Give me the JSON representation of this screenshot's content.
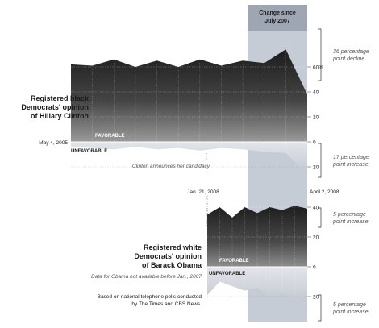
{
  "chart_data": [
    {
      "type": "area",
      "name": "clinton",
      "title": [
        "Registered black",
        "Democrats' opinion",
        "of Hillary Clinton"
      ],
      "x_start": "May 4, 2005",
      "x_end": "April 2, 2008",
      "ylim": [
        -30,
        80
      ],
      "ticks": [
        "60%",
        "40",
        "20",
        "0",
        "20"
      ],
      "tick_values": [
        60,
        40,
        20,
        0,
        -20
      ],
      "series": [
        {
          "name": "FAVORABLE",
          "values": [
            62,
            61,
            66,
            60,
            65,
            60,
            66,
            61,
            65,
            63,
            74,
            38
          ]
        },
        {
          "name": "UNFAVORABLE",
          "values": [
            -4,
            -5,
            -6,
            -4,
            -6,
            -5,
            -7,
            -5,
            -6,
            -8,
            -9,
            -26
          ]
        }
      ],
      "annotation": "Clinton announces her candidacy",
      "changes": [
        {
          "lines": [
            "36 percentage",
            "point decline"
          ]
        },
        {
          "lines": [
            "17 percentage",
            "point increase"
          ]
        }
      ]
    },
    {
      "type": "area",
      "name": "obama",
      "title": [
        "Registered white",
        "Democrats' opinion",
        "of Barack Obama"
      ],
      "x_start": "Jan. 21, 2008",
      "ylim": [
        -30,
        80
      ],
      "ticks": [
        "40",
        "20",
        "0",
        "20"
      ],
      "tick_values": [
        40,
        20,
        0,
        -20
      ],
      "series": [
        {
          "name": "FAVORABLE",
          "values": [
            35,
            40,
            33,
            40,
            36,
            40,
            38,
            41,
            39
          ]
        },
        {
          "name": "UNFAVORABLE",
          "values": [
            -19,
            -10,
            -13,
            -16,
            -14,
            -20,
            -18,
            -21,
            -24
          ]
        }
      ],
      "note": "Data for Obama not available before Jan., 2007",
      "changes": [
        {
          "lines": [
            "5 percentage",
            "point increase"
          ]
        },
        {
          "lines": [
            "5 percentage",
            "point increase"
          ]
        }
      ]
    }
  ],
  "highlight_label": [
    "Change since",
    "July 2007"
  ],
  "source": [
    "Based on national telephone polls conducted",
    "by The Times and CBS News."
  ],
  "colors": {
    "dark": "#1c1c1c",
    "light_top": "#9a9a9a",
    "band": "#c6ccd6",
    "band_head": "#9ea6b4",
    "unfav": "#d0d4da"
  }
}
